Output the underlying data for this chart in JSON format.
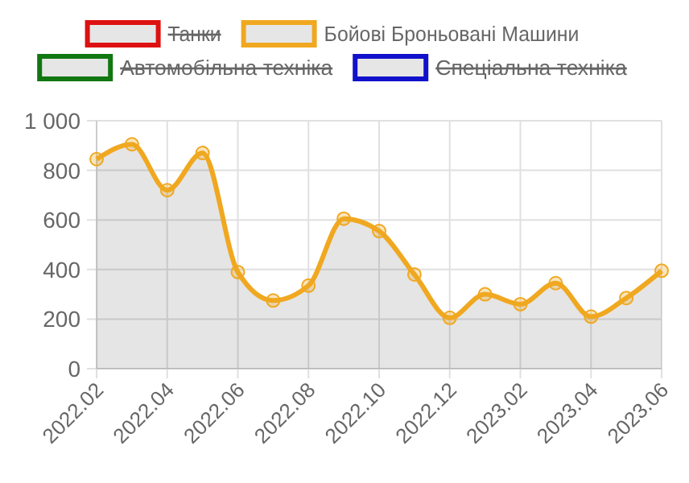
{
  "chart_data": {
    "type": "area",
    "categories": [
      "2022.02",
      null,
      "2022.04",
      null,
      "2022.06",
      null,
      "2022.08",
      null,
      "2022.10",
      null,
      "2022.12",
      null,
      "2023.02",
      null,
      "2023.04",
      null,
      "2023.06"
    ],
    "series": [
      {
        "name": "Танки",
        "color": "#dd1111",
        "values": [
          null,
          null,
          null,
          null,
          null,
          null,
          null,
          null,
          null,
          null,
          null,
          null,
          null,
          null,
          null,
          null,
          null
        ]
      },
      {
        "name": "Бойові Броньовані Машини",
        "color": "#f0a820",
        "values": [
          845,
          905,
          720,
          870,
          390,
          275,
          335,
          605,
          555,
          380,
          205,
          300,
          260,
          345,
          210,
          285,
          395
        ]
      },
      {
        "name": "Автомобільна техніка",
        "color": "#117711",
        "values": [
          null,
          null,
          null,
          null,
          null,
          null,
          null,
          null,
          null,
          null,
          null,
          null,
          null,
          null,
          null,
          null,
          null
        ]
      },
      {
        "name": "Спеціальна техніка",
        "color": "#1111cc",
        "values": [
          null,
          null,
          null,
          null,
          null,
          null,
          null,
          null,
          null,
          null,
          null,
          null,
          null,
          null,
          null,
          null,
          null
        ]
      }
    ],
    "ylim": [
      0,
      1000
    ],
    "yticks": [
      0,
      200,
      400,
      600,
      800,
      {
        "value": 1000,
        "label": "1 000"
      }
    ],
    "grid": true,
    "legend": "top",
    "marker": "circle"
  }
}
